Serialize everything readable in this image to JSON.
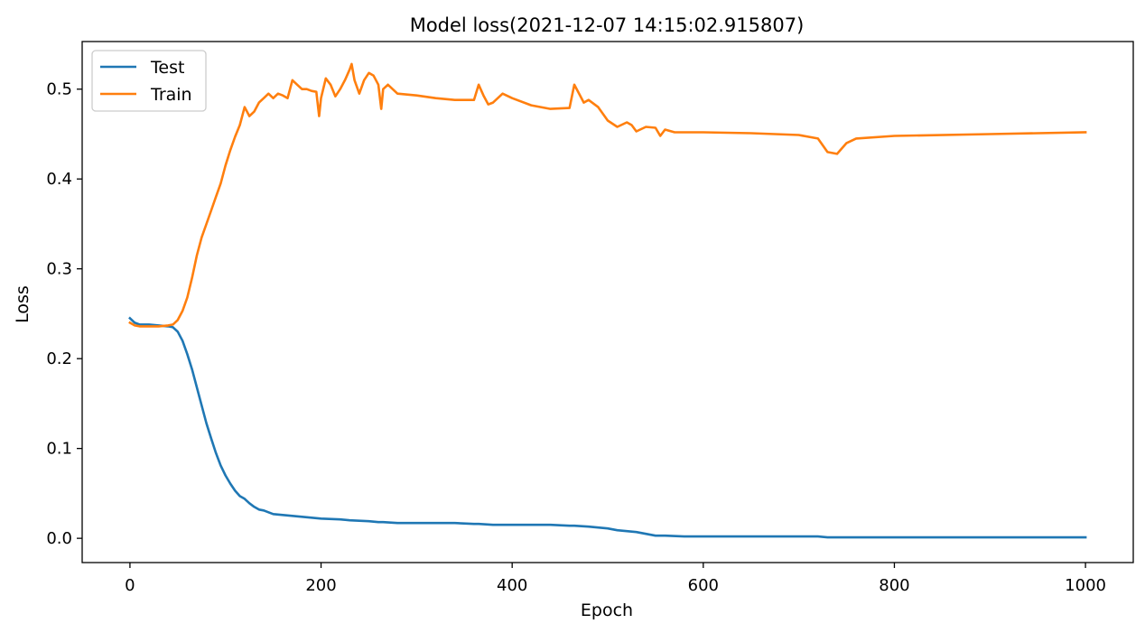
{
  "chart_data": {
    "type": "line",
    "title": "Model loss(2021-12-07 14:15:02.915807)",
    "xlabel": "Epoch",
    "ylabel": "Loss",
    "xlim": [
      -50,
      1050
    ],
    "ylim": [
      -0.027,
      0.553
    ],
    "xticks": [
      0,
      200,
      400,
      600,
      800,
      1000
    ],
    "xtick_labels": [
      "0",
      "200",
      "400",
      "600",
      "800",
      "1000"
    ],
    "yticks": [
      0.0,
      0.1,
      0.2,
      0.3,
      0.4,
      0.5
    ],
    "ytick_labels": [
      "0.0",
      "0.1",
      "0.2",
      "0.3",
      "0.4",
      "0.5"
    ],
    "grid": false,
    "legend_position": "top-left",
    "series": [
      {
        "name": "Test",
        "color": "#1f77b4",
        "x": [
          0,
          5,
          10,
          20,
          30,
          40,
          45,
          50,
          55,
          60,
          65,
          70,
          75,
          80,
          85,
          90,
          95,
          100,
          105,
          110,
          115,
          120,
          125,
          130,
          135,
          140,
          145,
          150,
          160,
          170,
          180,
          190,
          200,
          220,
          230,
          250,
          260,
          265,
          280,
          300,
          320,
          340,
          360,
          365,
          380,
          400,
          420,
          440,
          460,
          465,
          480,
          500,
          510,
          520,
          530,
          540,
          550,
          560,
          580,
          600,
          700,
          720,
          730,
          740,
          760,
          800,
          900,
          1000
        ],
        "y": [
          0.245,
          0.24,
          0.238,
          0.238,
          0.237,
          0.236,
          0.235,
          0.23,
          0.22,
          0.205,
          0.188,
          0.168,
          0.148,
          0.128,
          0.111,
          0.095,
          0.081,
          0.07,
          0.061,
          0.053,
          0.047,
          0.044,
          0.039,
          0.035,
          0.032,
          0.031,
          0.029,
          0.027,
          0.026,
          0.025,
          0.024,
          0.023,
          0.022,
          0.021,
          0.02,
          0.019,
          0.018,
          0.018,
          0.017,
          0.017,
          0.017,
          0.017,
          0.016,
          0.016,
          0.015,
          0.015,
          0.015,
          0.015,
          0.014,
          0.014,
          0.013,
          0.011,
          0.009,
          0.008,
          0.007,
          0.005,
          0.003,
          0.003,
          0.002,
          0.002,
          0.002,
          0.002,
          0.001,
          0.001,
          0.001,
          0.001,
          0.001,
          0.001
        ]
      },
      {
        "name": "Train",
        "color": "#ff7f0e",
        "x": [
          0,
          5,
          10,
          20,
          30,
          40,
          45,
          50,
          55,
          60,
          65,
          70,
          75,
          80,
          85,
          90,
          95,
          100,
          105,
          110,
          115,
          120,
          125,
          130,
          135,
          140,
          145,
          150,
          155,
          160,
          165,
          170,
          175,
          180,
          185,
          190,
          195,
          198,
          200,
          205,
          210,
          215,
          220,
          225,
          230,
          232,
          235,
          240,
          245,
          250,
          255,
          260,
          263,
          265,
          270,
          280,
          300,
          320,
          340,
          360,
          365,
          370,
          375,
          380,
          390,
          400,
          420,
          440,
          460,
          465,
          470,
          475,
          480,
          490,
          500,
          510,
          520,
          525,
          530,
          540,
          550,
          555,
          560,
          570,
          580,
          600,
          650,
          700,
          720,
          730,
          740,
          750,
          760,
          800,
          900,
          1000
        ],
        "y": [
          0.24,
          0.237,
          0.236,
          0.236,
          0.236,
          0.237,
          0.238,
          0.243,
          0.253,
          0.268,
          0.29,
          0.315,
          0.335,
          0.35,
          0.365,
          0.38,
          0.395,
          0.415,
          0.432,
          0.447,
          0.46,
          0.48,
          0.47,
          0.475,
          0.485,
          0.49,
          0.495,
          0.49,
          0.495,
          0.493,
          0.49,
          0.51,
          0.505,
          0.5,
          0.5,
          0.498,
          0.497,
          0.47,
          0.49,
          0.512,
          0.505,
          0.492,
          0.5,
          0.51,
          0.522,
          0.528,
          0.51,
          0.495,
          0.51,
          0.518,
          0.515,
          0.505,
          0.478,
          0.5,
          0.505,
          0.495,
          0.493,
          0.49,
          0.488,
          0.488,
          0.505,
          0.493,
          0.483,
          0.485,
          0.495,
          0.49,
          0.482,
          0.478,
          0.479,
          0.505,
          0.495,
          0.485,
          0.488,
          0.48,
          0.465,
          0.458,
          0.463,
          0.46,
          0.453,
          0.458,
          0.457,
          0.448,
          0.455,
          0.452,
          0.452,
          0.452,
          0.451,
          0.449,
          0.445,
          0.43,
          0.428,
          0.44,
          0.445,
          0.448,
          0.45,
          0.452
        ]
      }
    ]
  }
}
